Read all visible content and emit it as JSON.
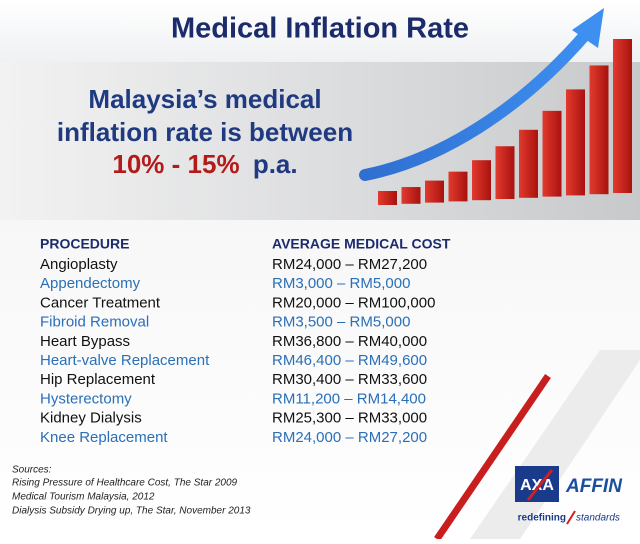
{
  "title": "Medical Inflation Rate",
  "headline": {
    "line1": "Malaysia’s medical",
    "line2": "inflation rate is between",
    "range": "10% - 15%",
    "unit": "p.a."
  },
  "table": {
    "headers": [
      "PROCEDURE",
      "AVERAGE MEDICAL COST"
    ],
    "rows": [
      [
        "Angioplasty",
        "RM24,000 – RM27,200"
      ],
      [
        "Appendectomy",
        "RM3,000 – RM5,000"
      ],
      [
        "Cancer Treatment",
        "RM20,000 – RM100,000"
      ],
      [
        "Fibroid Removal",
        "RM3,500 – RM5,000"
      ],
      [
        "Heart Bypass",
        "RM36,800 – RM40,000"
      ],
      [
        "Heart-valve Replacement",
        "RM46,400 – RM49,600"
      ],
      [
        "Hip Replacement",
        "RM30,400 – RM33,600"
      ],
      [
        "Hysterectomy",
        "RM11,200 – RM14,400"
      ],
      [
        "Kidney Dialysis",
        "RM25,300 – RM33,000"
      ],
      [
        "Knee Replacement",
        "RM24,000 – RM27,200"
      ]
    ]
  },
  "sources": {
    "label": "Sources:",
    "items": [
      "Rising Pressure of Healthcare Cost, The Star 2009",
      "Medical Tourism Malaysia, 2012",
      "Dialysis Subsidy Drying up, The Star, November 2013"
    ]
  },
  "logos": {
    "axa": "AXA",
    "affin": "AFFIN",
    "tagline_left": "redefining",
    "tagline_right": "standards"
  }
}
